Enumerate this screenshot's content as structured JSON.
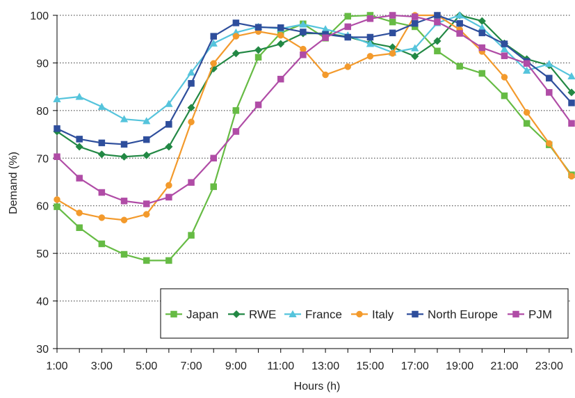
{
  "chart_data": {
    "type": "line",
    "title": "",
    "xlabel": "Hours (h)",
    "ylabel": "Demand (%)",
    "ylim": [
      30,
      100
    ],
    "yticks": [
      "30",
      "40",
      "50",
      "60",
      "70",
      "80",
      "90",
      "100"
    ],
    "x": [
      1,
      2,
      3,
      4,
      5,
      6,
      7,
      8,
      9,
      10,
      11,
      12,
      13,
      14,
      15,
      16,
      17,
      18,
      19,
      20,
      21,
      22,
      23,
      24
    ],
    "xtick_labels": [
      "1:00",
      "3:00",
      "5:00",
      "7:00",
      "9:00",
      "11:00",
      "13:00",
      "15:00",
      "17:00",
      "19:00",
      "21:00",
      "23:00"
    ],
    "grid": "horizontal dotted",
    "legend_position": "bottom-right",
    "series": [
      {
        "name": "Japan",
        "color": "#66bb44",
        "marker": "square",
        "values": [
          59.8,
          55.4,
          52.0,
          49.8,
          48.5,
          48.5,
          53.8,
          64.0,
          80.0,
          91.2,
          96.3,
          98.2,
          95.2,
          99.8,
          100.0,
          98.6,
          97.6,
          92.5,
          89.3,
          87.8,
          83.1,
          77.3,
          72.8,
          66.5
        ]
      },
      {
        "name": "RWE",
        "color": "#228844",
        "marker": "diamond",
        "values": [
          75.6,
          72.4,
          70.8,
          70.3,
          70.6,
          72.4,
          80.6,
          88.8,
          92.0,
          92.7,
          94.0,
          96.2,
          96.2,
          95.5,
          94.2,
          93.3,
          91.4,
          94.6,
          100.0,
          98.8,
          94.1,
          90.8,
          89.5,
          83.8
        ]
      },
      {
        "name": "France",
        "color": "#55c4dc",
        "marker": "triangle",
        "values": [
          82.4,
          82.9,
          80.8,
          78.2,
          77.8,
          81.4,
          88.0,
          94.1,
          96.4,
          97.6,
          97.2,
          98.1,
          97.1,
          95.8,
          94.0,
          92.2,
          93.1,
          98.4,
          100.0,
          97.4,
          92.9,
          88.4,
          89.8,
          87.2
        ]
      },
      {
        "name": "Italy",
        "color": "#f39a2c",
        "marker": "circle",
        "values": [
          61.3,
          58.5,
          57.5,
          57.0,
          58.2,
          64.3,
          77.6,
          89.9,
          95.6,
          96.6,
          95.8,
          92.9,
          87.5,
          89.2,
          91.4,
          92.0,
          100.0,
          100.0,
          97.0,
          92.4,
          87.0,
          79.6,
          73.1,
          66.2
        ]
      },
      {
        "name": "North Europe",
        "color": "#2e4e9c",
        "marker": "square",
        "values": [
          76.2,
          74.0,
          73.2,
          72.9,
          73.9,
          77.1,
          85.7,
          95.6,
          98.4,
          97.5,
          97.4,
          96.5,
          96.0,
          95.4,
          95.4,
          96.3,
          98.3,
          100.0,
          98.3,
          96.3,
          94.0,
          90.3,
          86.8,
          81.6
        ]
      },
      {
        "name": "PJM",
        "color": "#b04ca6",
        "marker": "square",
        "values": [
          70.3,
          65.8,
          62.8,
          61.0,
          60.4,
          61.8,
          64.9,
          70.0,
          75.6,
          81.2,
          86.6,
          91.7,
          95.3,
          97.6,
          99.3,
          100.0,
          99.7,
          98.6,
          96.2,
          93.2,
          91.5,
          89.9,
          83.8,
          77.3
        ]
      }
    ]
  }
}
